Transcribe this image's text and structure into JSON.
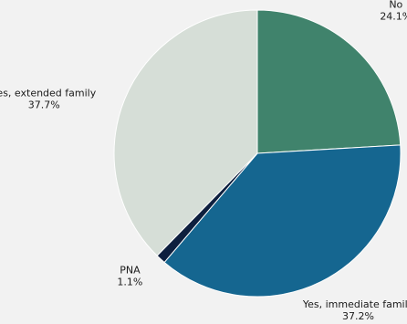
{
  "chart_data": {
    "type": "pie",
    "title": "",
    "slices": [
      {
        "label": "No",
        "value": 24.1,
        "value_label": "24.1%",
        "color": "#40836c"
      },
      {
        "label": "Yes, immediate family",
        "value": 37.2,
        "value_label": "37.2%",
        "color": "#156690"
      },
      {
        "label": "PNA",
        "value": 1.1,
        "value_label": "1.1%",
        "color": "#0e1f3e"
      },
      {
        "label": "Yes, extended family",
        "value": 37.7,
        "value_label": "37.7%",
        "color": "#d6ded7"
      }
    ],
    "start_angle": "12 o'clock",
    "direction": "clockwise",
    "labels_outside": true
  }
}
